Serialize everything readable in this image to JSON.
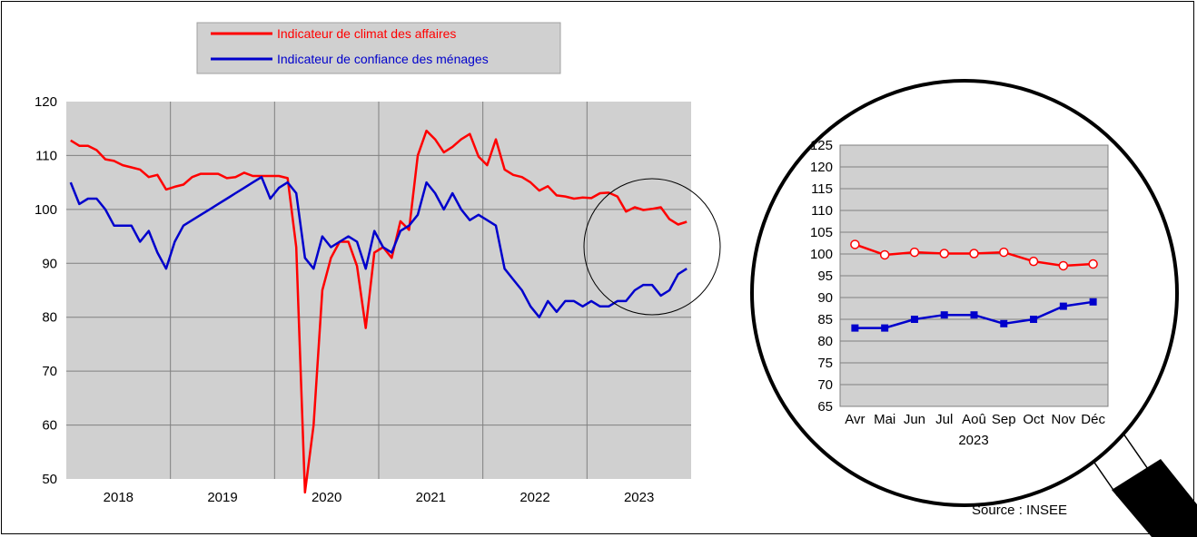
{
  "colors": {
    "climat": "#ff0000",
    "confiance": "#0000cc",
    "plot_bg": "#d0d0d0",
    "grid": "#808080",
    "legend_bg": "#d0d0d0"
  },
  "legend": {
    "climat_label": "Indicateur de climat des affaires",
    "confiance_label": "Indicateur de confiance des ménages"
  },
  "source": "Source : INSEE",
  "chart_data": [
    {
      "type": "line",
      "title": "",
      "xlabel": "",
      "ylabel": "",
      "ylim": [
        50,
        120
      ],
      "yticks": [
        50,
        60,
        70,
        80,
        90,
        100,
        110,
        120
      ],
      "year_labels": [
        "2018",
        "2019",
        "2020",
        "2021",
        "2022",
        "2023"
      ],
      "months_per_year": 12,
      "grid": true,
      "legend_position": "top",
      "series": [
        {
          "name": "Indicateur de climat des affaires",
          "color": "#ff0000",
          "values": [
            112.8,
            111.8,
            111.8,
            111.0,
            109.3,
            109.0,
            108.2,
            107.8,
            107.4,
            106.0,
            106.4,
            103.7,
            104.2,
            104.6,
            106.0,
            106.6,
            106.6,
            106.6,
            105.8,
            106.0,
            106.8,
            106.2,
            106.2,
            106.2,
            106.2,
            105.8,
            93.0,
            47.5,
            60.0,
            85.0,
            91.0,
            94.0,
            94.0,
            89.5,
            78.0,
            92.0,
            93.0,
            91.0,
            97.8,
            96.2,
            110.0,
            114.6,
            113.0,
            110.6,
            111.6,
            113.0,
            114.0,
            109.8,
            108.2,
            113.0,
            107.4,
            106.4,
            106.0,
            105.0,
            103.5,
            104.3,
            102.6,
            102.4,
            102.0,
            102.2,
            102.1,
            103.0,
            103.1,
            102.4,
            99.6,
            100.4,
            99.9,
            100.1,
            100.4,
            98.2,
            97.2,
            97.7
          ]
        },
        {
          "name": "Indicateur de confiance des ménages",
          "color": "#0000cc",
          "values": [
            105.0,
            101.0,
            102.0,
            102.0,
            100.0,
            97.0,
            97.0,
            97.0,
            94.0,
            96.0,
            92.0,
            89.0,
            94.0,
            97.0,
            98.0,
            99.0,
            100.0,
            101.0,
            102.0,
            103.0,
            104.0,
            105.0,
            106.0,
            102.0,
            104.0,
            105.0,
            103.0,
            91.0,
            89.0,
            95.0,
            93.0,
            94.0,
            95.0,
            94.0,
            89.0,
            96.0,
            93.0,
            92.0,
            96.0,
            97.0,
            99.0,
            105.0,
            103.0,
            100.0,
            103.0,
            100.0,
            98.0,
            99.0,
            98.0,
            97.0,
            89.0,
            87.0,
            85.0,
            82.0,
            80.0,
            83.0,
            81.0,
            83.0,
            83.0,
            82.0,
            83.0,
            82.0,
            82.0,
            83.0,
            83.0,
            85.0,
            86.0,
            86.0,
            84.0,
            85.0,
            88.0,
            89.0
          ]
        }
      ]
    },
    {
      "type": "line",
      "title": "",
      "xlabel": "2023",
      "ylabel": "",
      "ylim": [
        65,
        125
      ],
      "yticks": [
        65,
        70,
        75,
        80,
        85,
        90,
        95,
        100,
        105,
        110,
        115,
        120,
        125
      ],
      "categories": [
        "Avr",
        "Mai",
        "Jun",
        "Jul",
        "Aoû",
        "Sep",
        "Oct",
        "Nov",
        "Déc"
      ],
      "grid": true,
      "series": [
        {
          "name": "Indicateur de climat des affaires",
          "color": "#ff0000",
          "marker": "circle",
          "values": [
            102.2,
            99.8,
            100.4,
            100.1,
            100.1,
            100.4,
            98.3,
            97.3,
            97.7
          ]
        },
        {
          "name": "Indicateur de confiance des ménages",
          "color": "#0000cc",
          "marker": "square",
          "values": [
            83,
            83,
            85,
            86,
            86,
            84,
            85,
            88,
            89
          ]
        }
      ]
    }
  ]
}
